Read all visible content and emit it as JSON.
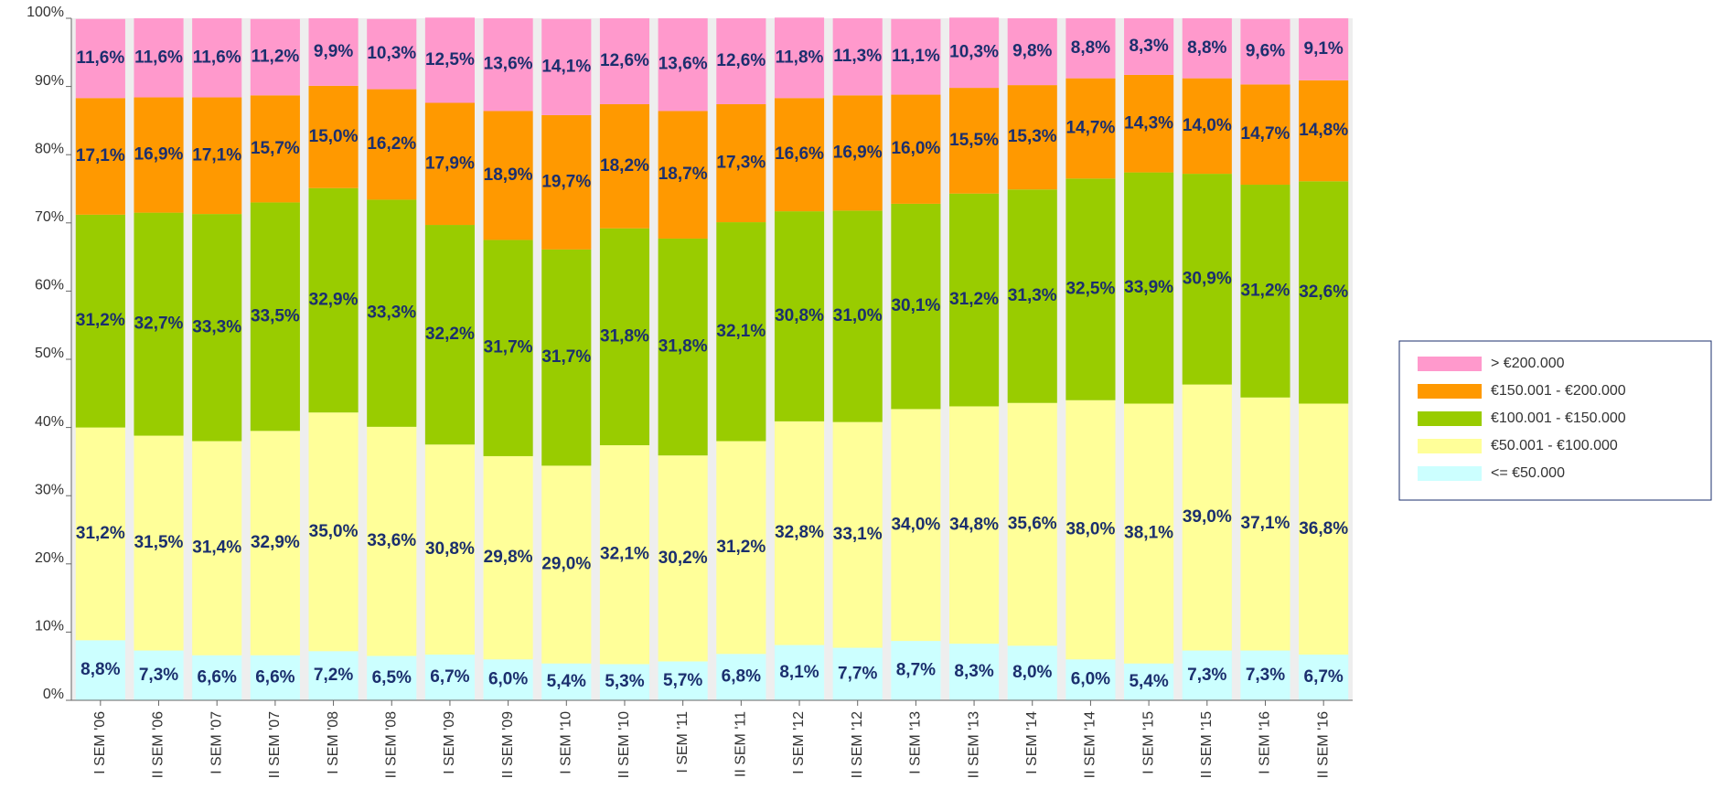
{
  "chart_data": {
    "type": "stacked_bar_100",
    "categories": [
      "I SEM '06",
      "II SEM '06",
      "I SEM '07",
      "II SEM '07",
      "I SEM '08",
      "II SEM '08",
      "I SEM '09",
      "II SEM '09",
      "I SEM '10",
      "II SEM '10",
      "I SEM '11",
      "II SEM '11",
      "I SEM '12",
      "II SEM '12",
      "I SEM '13",
      "II SEM '13",
      "I SEM '14",
      "II SEM '14",
      "I SEM '15",
      "II SEM '15",
      "I SEM '16",
      "II SEM '16"
    ],
    "series": [
      {
        "name": "<= €50.000",
        "color": "#ccffff",
        "values": [
          8.8,
          7.3,
          6.6,
          6.6,
          7.2,
          6.5,
          6.7,
          6.0,
          5.4,
          5.3,
          5.7,
          6.8,
          8.1,
          7.7,
          8.7,
          8.3,
          8.0,
          6.0,
          5.4,
          7.3,
          7.3,
          6.7
        ],
        "value_labels": [
          "8,8%",
          "7,3%",
          "6,6%",
          "6,6%",
          "7,2%",
          "6,5%",
          "6,7%",
          "6,0%",
          "5,4%",
          "5,3%",
          "5,7%",
          "6,8%",
          "8,1%",
          "7,7%",
          "8,7%",
          "8,3%",
          "8,0%",
          "6,0%",
          "5,4%",
          "7,3%",
          "7,3%",
          "6,7%"
        ]
      },
      {
        "name": "€50.001 - €100.000",
        "color": "#ffff99",
        "values": [
          31.2,
          31.5,
          31.4,
          32.9,
          35.0,
          33.6,
          30.8,
          29.8,
          29.0,
          32.1,
          30.2,
          31.2,
          32.8,
          33.1,
          34.0,
          34.8,
          35.6,
          38.0,
          38.1,
          39.0,
          37.1,
          36.8
        ],
        "value_labels": [
          "31,2%",
          "31,5%",
          "31,4%",
          "32,9%",
          "35,0%",
          "33,6%",
          "30,8%",
          "29,8%",
          "29,0%",
          "32,1%",
          "30,2%",
          "31,2%",
          "32,8%",
          "33,1%",
          "34,0%",
          "34,8%",
          "35,6%",
          "38,0%",
          "38,1%",
          "39,0%",
          "37,1%",
          "36,8%"
        ]
      },
      {
        "name": "€100.001 - €150.000",
        "color": "#99cc00",
        "values": [
          31.2,
          32.7,
          33.3,
          33.5,
          32.9,
          33.3,
          32.2,
          31.7,
          31.7,
          31.8,
          31.8,
          32.1,
          30.8,
          31.0,
          30.1,
          31.2,
          31.3,
          32.5,
          33.9,
          30.9,
          31.2,
          32.6
        ],
        "value_labels": [
          "31,2%",
          "32,7%",
          "33,3%",
          "33,5%",
          "32,9%",
          "33,3%",
          "32,2%",
          "31,7%",
          "31,7%",
          "31,8%",
          "31,8%",
          "32,1%",
          "30,8%",
          "31,0%",
          "30,1%",
          "31,2%",
          "31,3%",
          "32,5%",
          "33,9%",
          "30,9%",
          "31,2%",
          "32,6%"
        ]
      },
      {
        "name": "€150.001 - €200.000",
        "color": "#ff9900",
        "values": [
          17.1,
          16.9,
          17.1,
          15.7,
          15.0,
          16.2,
          17.9,
          18.9,
          19.7,
          18.2,
          18.7,
          17.3,
          16.6,
          16.9,
          16.0,
          15.5,
          15.3,
          14.7,
          14.3,
          14.0,
          14.7,
          14.8
        ],
        "value_labels": [
          "17,1%",
          "16,9%",
          "17,1%",
          "15,7%",
          "15,0%",
          "16,2%",
          "17,9%",
          "18,9%",
          "19,7%",
          "18,2%",
          "18,7%",
          "17,3%",
          "16,6%",
          "16,9%",
          "16,0%",
          "15,5%",
          "15,3%",
          "14,7%",
          "14,3%",
          "14,0%",
          "14,7%",
          "14,8%"
        ]
      },
      {
        "name": "> €200.000",
        "color": "#ff99cc",
        "values": [
          11.6,
          11.6,
          11.6,
          11.2,
          9.9,
          10.3,
          12.5,
          13.6,
          14.1,
          12.6,
          13.6,
          12.6,
          11.8,
          11.3,
          11.1,
          10.3,
          9.8,
          8.8,
          8.3,
          8.8,
          9.6,
          9.1
        ],
        "value_labels": [
          "11,6%",
          "11,6%",
          "11,6%",
          "11,2%",
          "9,9%",
          "10,3%",
          "12,5%",
          "13,6%",
          "14,1%",
          "12,6%",
          "13,6%",
          "12,6%",
          "11,8%",
          "11,3%",
          "11,1%",
          "10,3%",
          "9,8%",
          "8,8%",
          "8,3%",
          "8,8%",
          "9,6%",
          "9,1%"
        ]
      }
    ],
    "ylim": [
      0,
      100
    ],
    "yticks": [
      {
        "value": 0,
        "label": "0%"
      },
      {
        "value": 10,
        "label": "10%"
      },
      {
        "value": 20,
        "label": "20%"
      },
      {
        "value": 30,
        "label": "30%"
      },
      {
        "value": 40,
        "label": "40%"
      },
      {
        "value": 50,
        "label": "50%"
      },
      {
        "value": 60,
        "label": "60%"
      },
      {
        "value": 70,
        "label": "70%"
      },
      {
        "value": 80,
        "label": "80%"
      },
      {
        "value": 90,
        "label": "90%"
      },
      {
        "value": 100,
        "label": "100%"
      }
    ],
    "legend": "right"
  }
}
